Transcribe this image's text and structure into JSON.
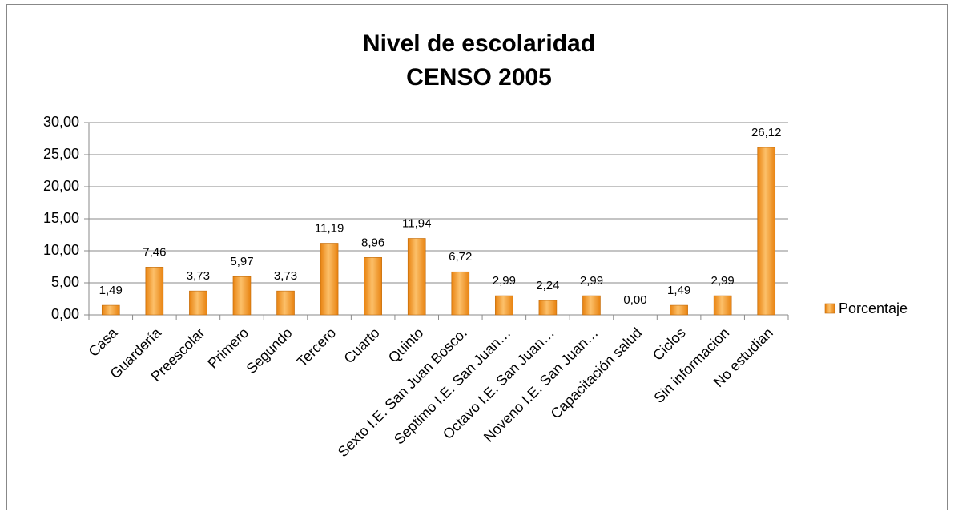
{
  "chart_data": {
    "type": "bar",
    "title": "Nivel de escolaridad",
    "subtitle": "CENSO 2005",
    "categories": [
      "Casa",
      "Guardería",
      "Preescolar",
      "Primero",
      "Segundo",
      "Tercero",
      "Cuarto",
      "Quinto",
      "Sexto I.E. San Juan Bosco.",
      "Septimo I.E. San Juan…",
      "Octavo I.E. San Juan…",
      "Noveno I.E. San Juan…",
      "Capacitación salud",
      "Ciclos",
      "Sin informacion",
      "No estudian"
    ],
    "series": [
      {
        "name": "Porcentaje",
        "color": "#e8820f",
        "values": [
          1.49,
          7.46,
          3.73,
          5.97,
          3.73,
          11.19,
          8.96,
          11.94,
          6.72,
          2.99,
          2.24,
          2.99,
          0.0,
          1.49,
          2.99,
          26.12
        ],
        "value_labels": [
          "1,49",
          "7,46",
          "3,73",
          "5,97",
          "3,73",
          "11,19",
          "8,96",
          "11,94",
          "6,72",
          "2,99",
          "2,24",
          "2,99",
          "0,00",
          "1,49",
          "2,99",
          "26,12"
        ]
      }
    ],
    "ylim": [
      0,
      30
    ],
    "yticks": [
      {
        "value": 0,
        "label": "0,00"
      },
      {
        "value": 5,
        "label": "5,00"
      },
      {
        "value": 10,
        "label": "10,00"
      },
      {
        "value": 15,
        "label": "15,00"
      },
      {
        "value": 20,
        "label": "20,00"
      },
      {
        "value": 25,
        "label": "25,00"
      },
      {
        "value": 30,
        "label": "30,00"
      }
    ],
    "grid": true,
    "legend": "right"
  }
}
